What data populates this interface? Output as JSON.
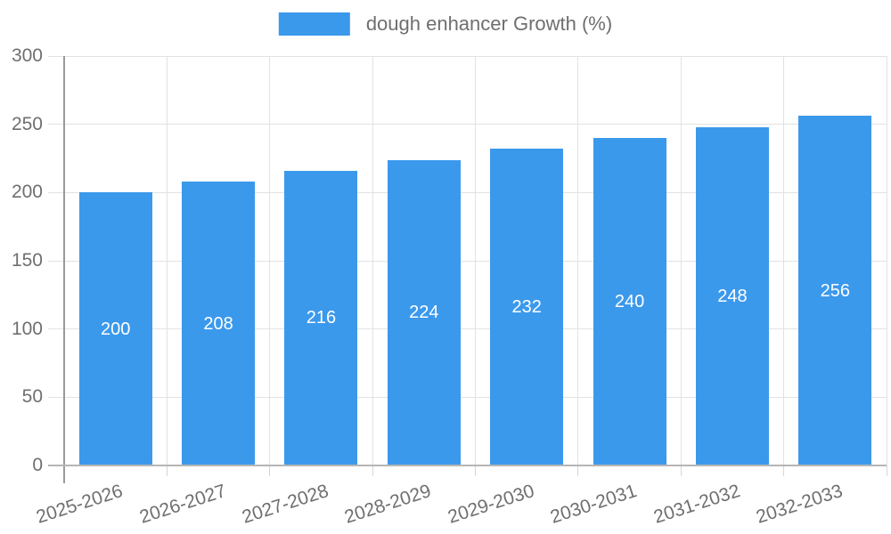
{
  "legend": {
    "label": "dough enhancer Growth (%)"
  },
  "chart_data": {
    "type": "bar",
    "title": "",
    "xlabel": "",
    "ylabel": "",
    "categories": [
      "2025-2026",
      "2026-2027",
      "2027-2028",
      "2028-2029",
      "2029-2030",
      "2030-2031",
      "2031-2032",
      "2032-2033"
    ],
    "series": [
      {
        "name": "dough enhancer Growth (%)",
        "values": [
          200,
          208,
          216,
          224,
          232,
          240,
          248,
          256
        ]
      }
    ],
    "ylim": [
      0,
      300
    ],
    "yticks": [
      0,
      50,
      100,
      150,
      200,
      250,
      300
    ],
    "grid": true,
    "legend_position": "top-center",
    "bar_color": "#3b99ec",
    "value_label_color": "#ffffff",
    "axis_text_color": "#6f6f6f",
    "value_labels_position": "inside-middle"
  }
}
